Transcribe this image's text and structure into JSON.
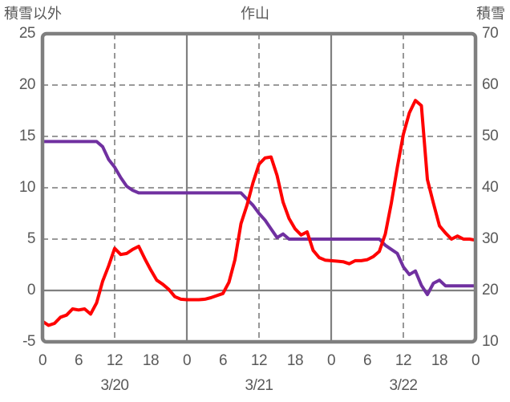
{
  "chart_data": {
    "type": "line",
    "title": "作山",
    "left_axis": {
      "title": "積雪以外",
      "min": -5,
      "max": 25,
      "tick_values": [
        25,
        20,
        15,
        10,
        5,
        0,
        -5
      ]
    },
    "right_axis": {
      "title": "積雪",
      "min": 10,
      "max": 70,
      "tick_values": [
        70,
        60,
        50,
        40,
        30,
        20,
        10
      ]
    },
    "x_axis": {
      "min_hour": 0,
      "max_hour": 72,
      "tick_step_hours": 6,
      "tick_labels": [
        "0",
        "6",
        "12",
        "18",
        "0",
        "6",
        "12",
        "18",
        "0",
        "6",
        "12",
        "18",
        "0"
      ],
      "date_labels": [
        {
          "hour": 12,
          "label": "3/20"
        },
        {
          "hour": 36,
          "label": "3/21"
        },
        {
          "hour": 60,
          "label": "3/22"
        }
      ]
    },
    "gridlines": {
      "horizontal_dashed_left_values": [
        20,
        15,
        10,
        5
      ],
      "horizontal_solid_left_values": [
        0
      ],
      "vertical_dashed_hours": [
        12,
        36,
        60
      ],
      "vertical_solid_hours": [
        24,
        48
      ]
    },
    "series": [
      {
        "id": "purple-series",
        "axis": "right",
        "color": "#7030A0",
        "x_start": 0,
        "x_step": 1,
        "values": [
          49,
          49,
          49,
          49,
          49,
          49,
          49,
          49,
          49,
          49,
          48,
          45.5,
          44,
          42,
          40.3,
          39.5,
          39,
          39,
          39,
          39,
          39,
          39,
          39,
          39,
          39,
          39,
          39,
          39,
          39,
          39,
          39,
          39,
          39,
          39,
          37.8,
          36.6,
          35,
          33.7,
          32,
          30.3,
          31,
          30,
          30,
          30,
          30,
          30,
          30,
          30,
          30,
          30,
          30,
          30,
          30,
          30,
          30,
          30,
          30,
          28.8,
          28,
          27.2,
          24.6,
          23.1,
          23.8,
          21,
          19.2,
          21.4,
          22,
          20.9,
          20.9,
          20.9,
          20.9,
          20.9,
          20.9
        ]
      },
      {
        "id": "red-series",
        "axis": "left",
        "color": "#FF0000",
        "x_start": 0,
        "x_step": 1,
        "values": [
          -3.0,
          -3.4,
          -3.2,
          -2.6,
          -2.4,
          -1.8,
          -1.9,
          -1.8,
          -2.3,
          -1.2,
          0.9,
          2.4,
          4.1,
          3.5,
          3.6,
          4.0,
          4.3,
          3.1,
          2.0,
          1.0,
          0.6,
          0.1,
          -0.6,
          -0.85,
          -0.9,
          -0.9,
          -0.9,
          -0.85,
          -0.7,
          -0.5,
          -0.3,
          0.8,
          3.0,
          6.5,
          8.3,
          10.5,
          12.3,
          12.9,
          13.0,
          11.2,
          8.6,
          7.0,
          6.0,
          5.4,
          5.7,
          3.9,
          3.2,
          2.95,
          2.9,
          2.85,
          2.8,
          2.6,
          2.9,
          2.9,
          3.0,
          3.3,
          3.8,
          5.5,
          8.5,
          12.0,
          15.2,
          17.3,
          18.5,
          18.0,
          10.8,
          8.5,
          6.3,
          5.6,
          5.0,
          5.3,
          5.0,
          5.0,
          4.9
        ]
      }
    ],
    "colors": {
      "red_series": "#FF0000",
      "purple_series": "#7030A0",
      "dashed_grid": "#8C8C8C",
      "solid_grid": "#808080",
      "border": "#7F7F7F",
      "text": "#595959",
      "background": "#FFFFFF"
    }
  }
}
